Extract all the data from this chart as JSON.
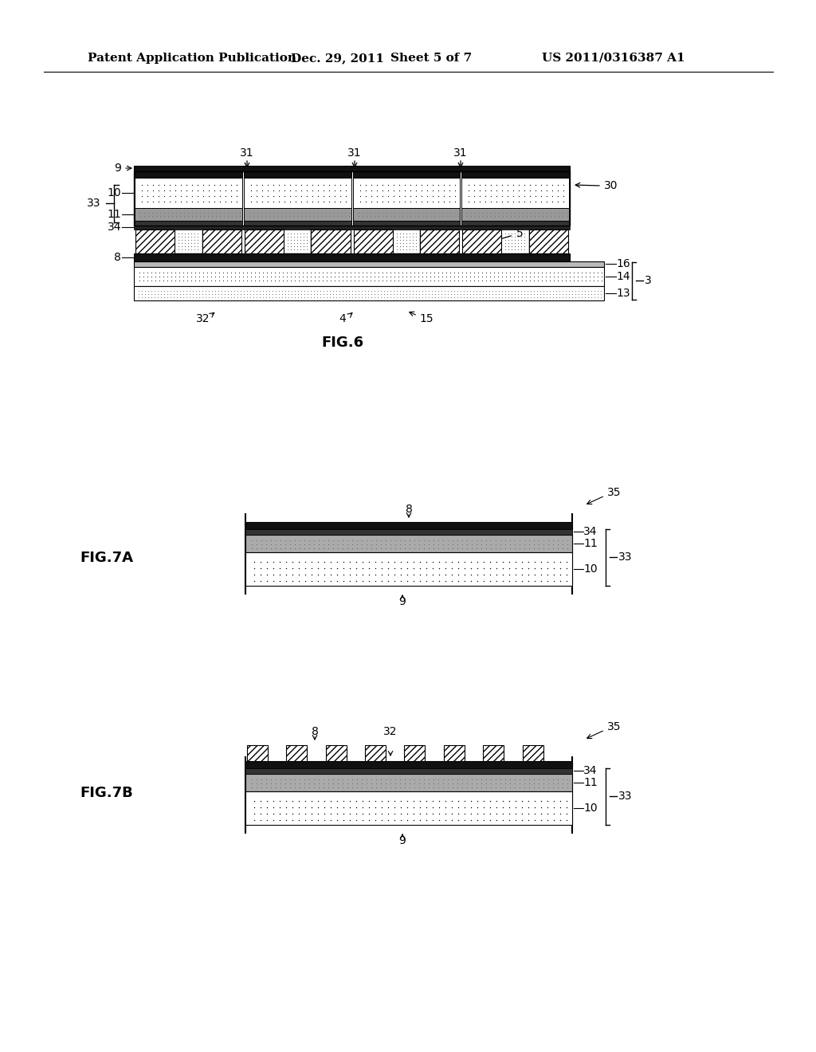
{
  "bg_color": "#ffffff",
  "header_left": "Patent Application Publication",
  "header_mid1": "Dec. 29, 2011",
  "header_mid2": "Sheet 5 of 7",
  "header_right": "US 2011/0316387 A1",
  "fig6_label": "FIG.6",
  "fig7a_label": "FIG.7A",
  "fig7b_label": "FIG.7B",
  "black": "#000000",
  "dark_gray": "#111111",
  "med_gray": "#888888",
  "light_gray": "#cccccc",
  "white": "#ffffff"
}
